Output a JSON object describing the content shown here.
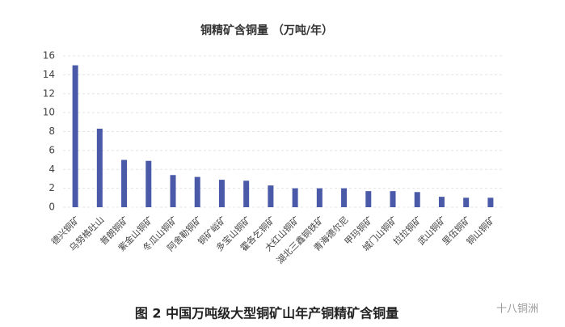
{
  "chart_data": {
    "type": "bar",
    "title": "铜精矿含铜量 （万吨/年）",
    "categories": [
      "德兴铜矿",
      "乌努格吐山",
      "普朗铜矿",
      "紫金山铜矿",
      "冬瓜山铜矿",
      "阿舍勒铜矿",
      "铜矿峪矿",
      "多宝山铜矿",
      "霍各乞铜矿",
      "大红山铜矿",
      "湖北三鑫铜铁矿",
      "青海德尔尼",
      "甲玛铜矿",
      "城门山铜矿",
      "拉拉铜矿",
      "武山铜矿",
      "里伍铜矿",
      "铜山铜矿"
    ],
    "values": [
      15.0,
      8.3,
      5.0,
      4.9,
      3.4,
      3.2,
      2.9,
      2.8,
      2.3,
      2.0,
      2.0,
      2.0,
      1.7,
      1.7,
      1.6,
      1.1,
      1.0,
      1.0
    ],
    "color": "#4a5aa8",
    "ylim": [
      0,
      16
    ],
    "yticks": [
      0,
      2,
      4,
      6,
      8,
      10,
      12,
      14,
      16
    ],
    "grid": true
  },
  "caption": "图 2  中国万吨级大型铜矿山年产铜精矿含铜量",
  "watermark": "十八铜洲"
}
